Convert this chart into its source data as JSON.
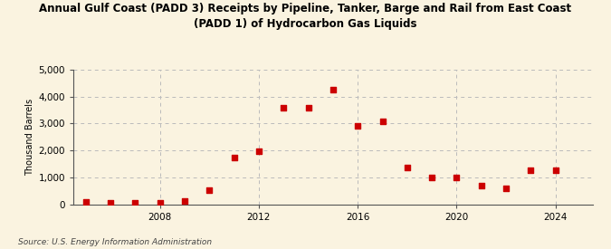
{
  "title": "Annual Gulf Coast (PADD 3) Receipts by Pipeline, Tanker, Barge and Rail from East Coast\n(PADD 1) of Hydrocarbon Gas Liquids",
  "ylabel": "Thousand Barrels",
  "source": "Source: U.S. Energy Information Administration",
  "background_color": "#faf3e0",
  "plot_background_color": "#faf3e0",
  "marker_color": "#cc0000",
  "years": [
    2005,
    2006,
    2007,
    2008,
    2009,
    2010,
    2011,
    2012,
    2013,
    2014,
    2015,
    2016,
    2017,
    2018,
    2019,
    2020,
    2021,
    2022,
    2023,
    2024
  ],
  "values": [
    75,
    55,
    50,
    45,
    120,
    510,
    1740,
    1970,
    3570,
    3590,
    4270,
    2900,
    3090,
    1380,
    1010,
    980,
    700,
    600,
    1260,
    1260
  ],
  "ylim": [
    0,
    5000
  ],
  "yticks": [
    0,
    1000,
    2000,
    3000,
    4000,
    5000
  ],
  "xlim": [
    2004.5,
    2025.5
  ],
  "xticks": [
    2008,
    2012,
    2016,
    2020,
    2024
  ]
}
